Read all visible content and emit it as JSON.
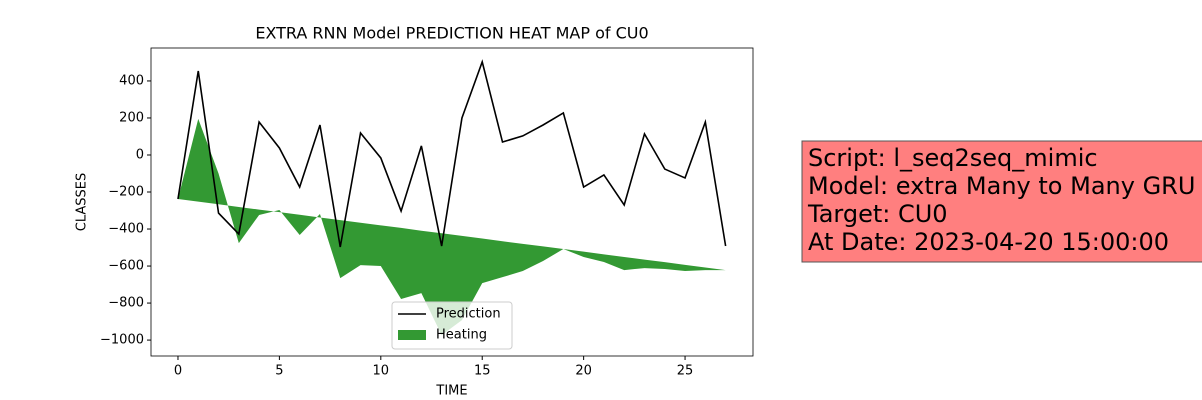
{
  "chart_data": {
    "type": "line",
    "title": "EXTRA RNN Model PREDICTION HEAT MAP of CU0",
    "x_label": "TIME",
    "y_label": "CLASSES",
    "x": [
      0,
      1,
      2,
      3,
      4,
      5,
      6,
      7,
      8,
      9,
      10,
      11,
      12,
      13,
      14,
      15,
      16,
      17,
      18,
      19,
      20,
      21,
      22,
      23,
      24,
      25,
      26,
      27
    ],
    "series": [
      {
        "name": "Prediction",
        "color": "#000000",
        "values": [
          -238,
          454,
          -314,
          -427,
          178,
          38,
          -173,
          162,
          -497,
          119,
          -16,
          -303,
          49,
          -492,
          200,
          503,
          70,
          103,
          162,
          227,
          -173,
          -108,
          -270,
          114,
          -76,
          -124,
          178,
          -492
        ]
      },
      {
        "name": "Heating",
        "color": "#339933",
        "kind": "area",
        "values": [
          -238,
          195,
          -100,
          -476,
          -324,
          -297,
          -432,
          -319,
          -665,
          -595,
          -600,
          -778,
          -746,
          -973,
          -892,
          -692,
          -660,
          -627,
          -573,
          -508,
          -551,
          -578,
          -622,
          -611,
          -616,
          -627,
          -622,
          -622
        ],
        "base": [
          -238,
          -252,
          -266,
          -281,
          -295,
          -309,
          -323,
          -338,
          -352,
          -366,
          -380,
          -394,
          -409,
          -423,
          -437,
          -451,
          -466,
          -480,
          -494,
          -508,
          -522,
          -537,
          -551,
          -565,
          -579,
          -594,
          -608,
          -622
        ]
      }
    ],
    "xlim": [
      -1.33,
      28.35
    ],
    "ylim": [
      -1086,
      578
    ],
    "xticks": [
      0,
      5,
      10,
      15,
      20,
      25
    ],
    "yticks": [
      {
        "value": -1000,
        "label": "−1000"
      },
      {
        "value": -800,
        "label": "−800"
      },
      {
        "value": -600,
        "label": "−600"
      },
      {
        "value": -400,
        "label": "−400"
      },
      {
        "value": -200,
        "label": "−200"
      },
      0,
      200,
      400
    ],
    "legend": "lower center",
    "annotation": {
      "lines": [
        "Script: l_seq2seq_mimic",
        "Model: extra Many to Many GRU",
        "Target: CU0",
        "At Date: 2023-04-20 15:00:00"
      ],
      "color": "#ff7f7f"
    }
  }
}
